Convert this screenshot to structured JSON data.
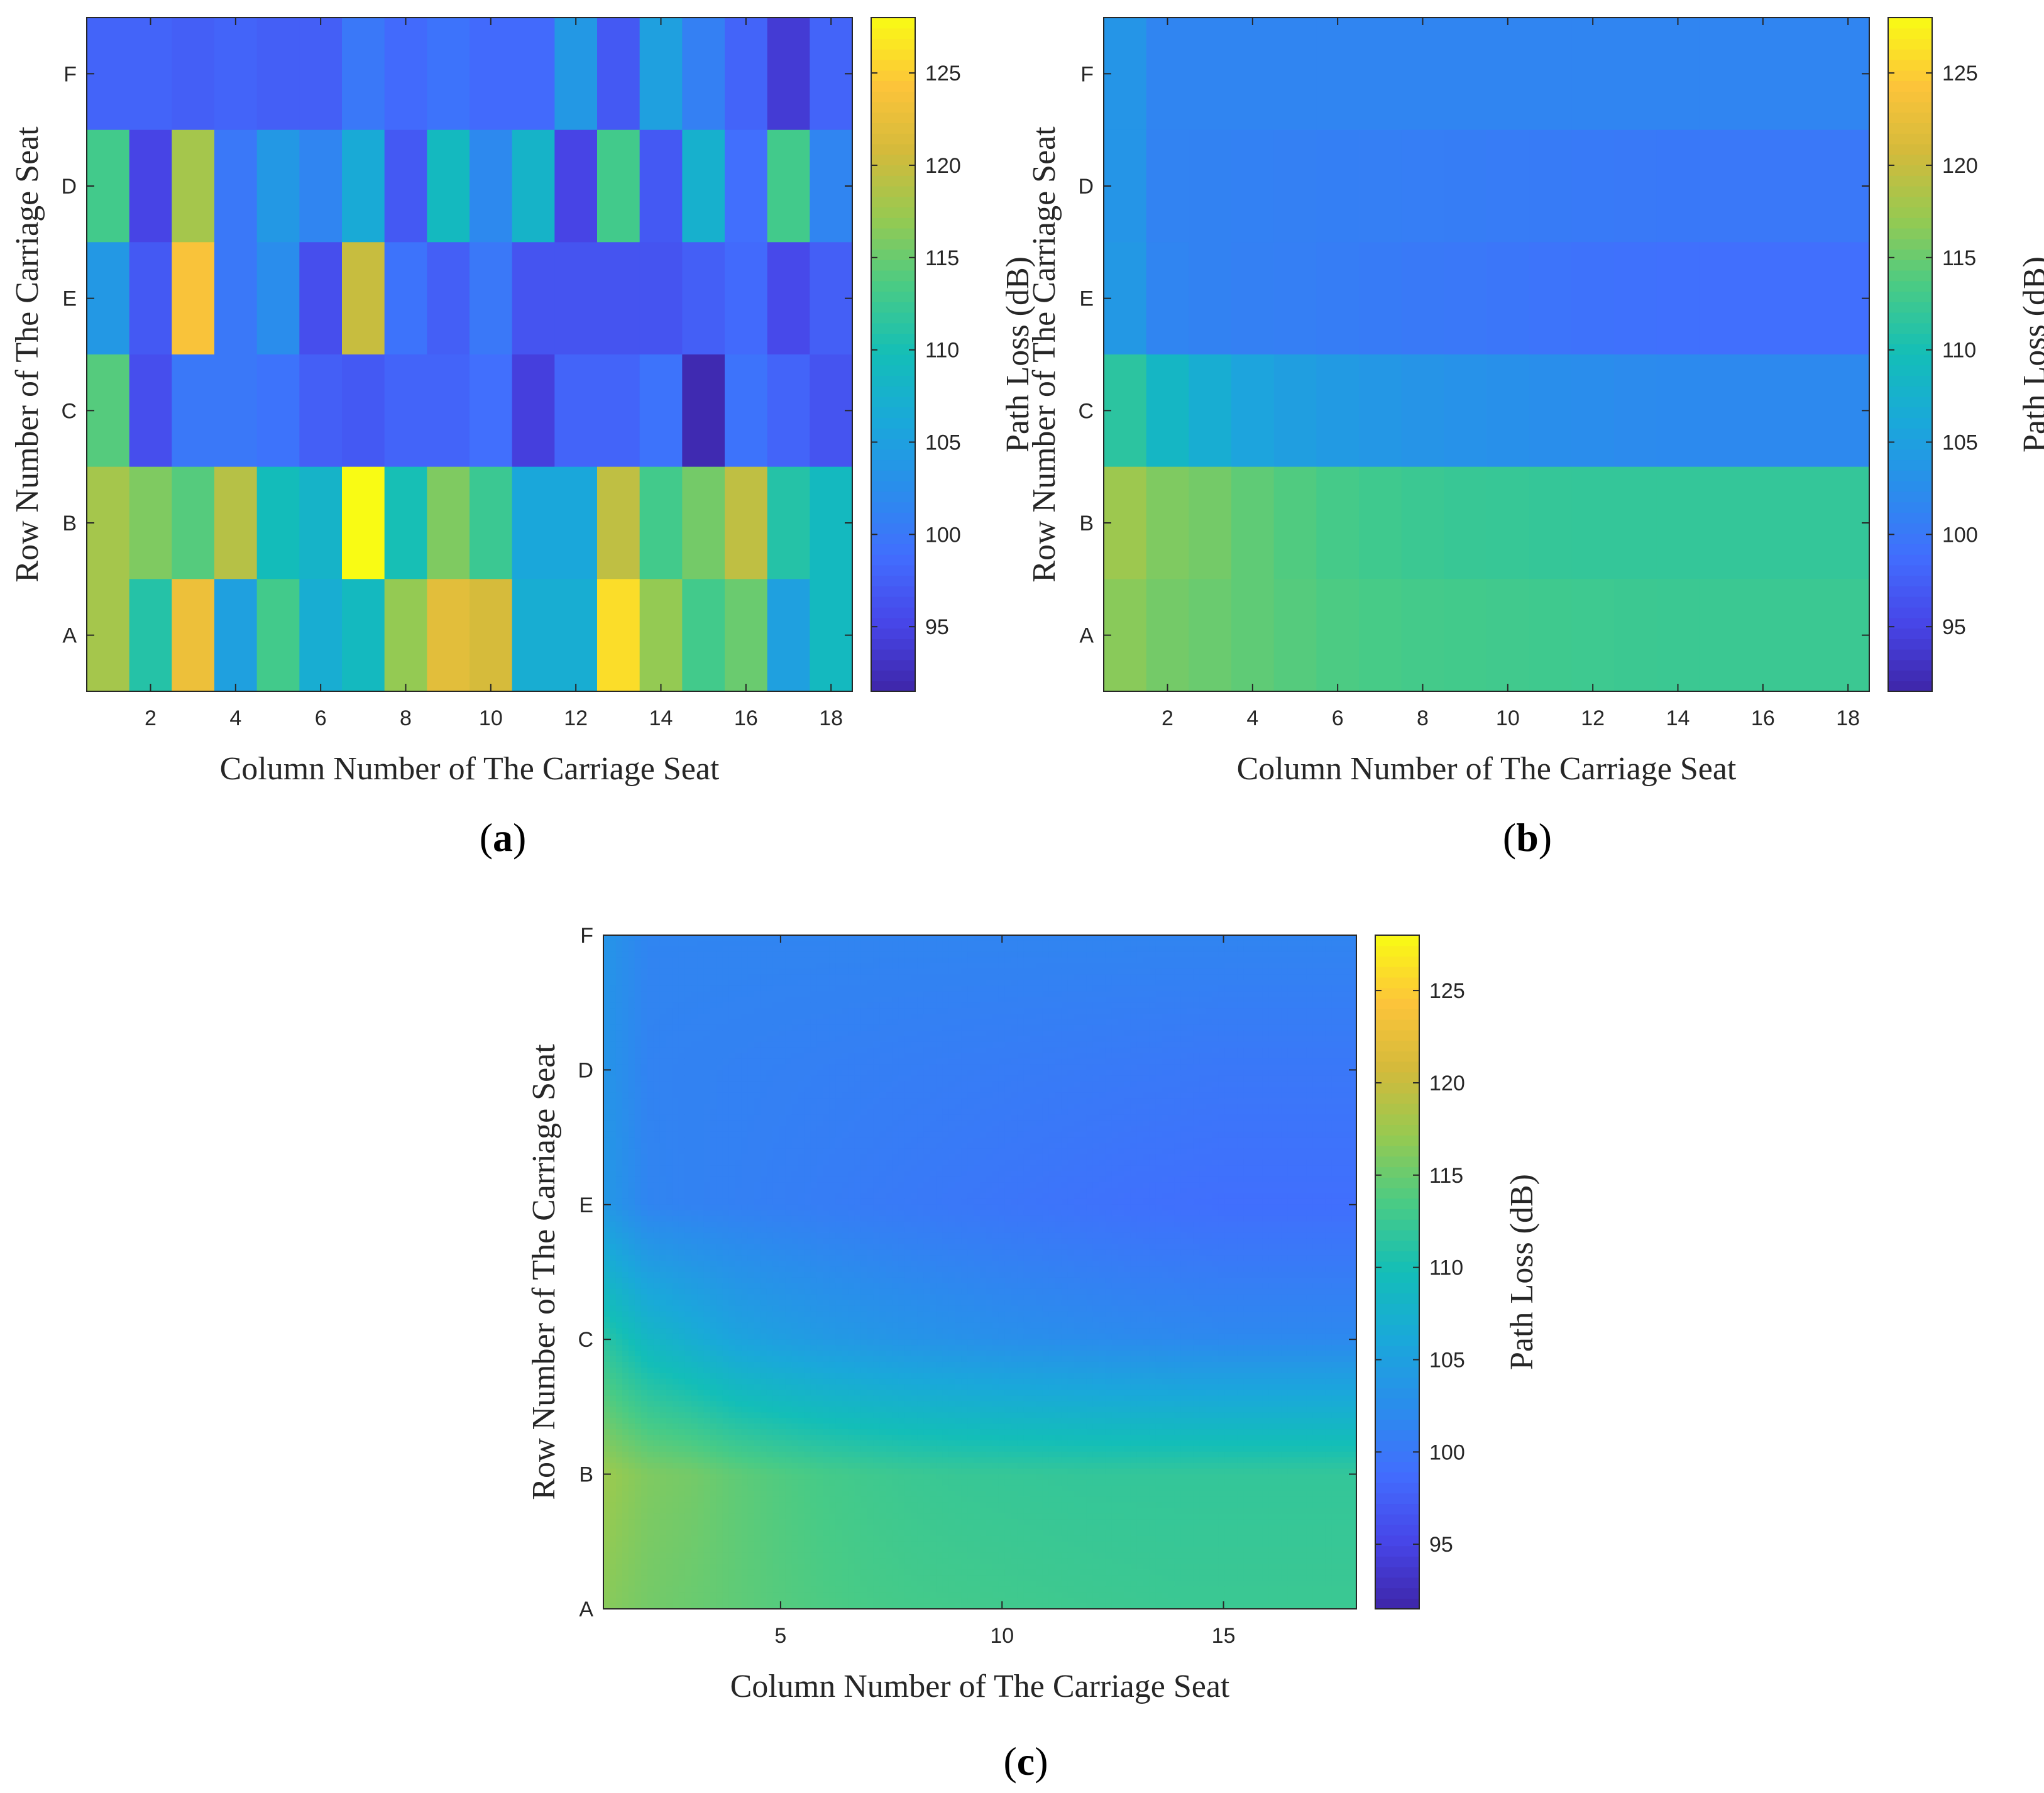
{
  "chart_data": [
    {
      "type": "heatmap",
      "panel": "a",
      "caption": {
        "open": "(",
        "letter": "a",
        "close": ")"
      },
      "xlabel": "Column Number of The Carriage Seat",
      "ylabel": "Row Number of The Carriage Seat",
      "colorbar_label": "Path Loss (dB)",
      "colorbar_ticks": [
        "95",
        "100",
        "105",
        "110",
        "115",
        "120",
        "125"
      ],
      "clim": [
        91.5,
        128
      ],
      "x_ticks": [
        "2",
        "4",
        "6",
        "8",
        "10",
        "12",
        "14",
        "16",
        "18"
      ],
      "x_tick_values": [
        2,
        4,
        6,
        8,
        10,
        12,
        14,
        16,
        18
      ],
      "xlim": [
        0.5,
        18.5
      ],
      "y_ticks": [
        "F",
        "D",
        "E",
        "C",
        "B",
        "A"
      ],
      "columns": 18,
      "rows": [
        "F",
        "D",
        "E",
        "C",
        "B",
        "A"
      ],
      "values": [
        [
          98,
          98,
          97.5,
          98,
          97.5,
          97.5,
          100,
          98.5,
          99.5,
          98.5,
          98.5,
          104,
          97,
          105,
          101,
          98,
          94,
          98
        ],
        [
          113,
          95,
          118,
          100,
          104,
          101.5,
          106.5,
          97,
          109,
          102,
          108,
          95,
          113,
          97,
          107.5,
          99,
          113,
          101.5
        ],
        [
          104,
          97,
          124,
          100,
          102.5,
          96,
          120,
          99.5,
          97.5,
          100,
          96.5,
          96.5,
          96.5,
          96.5,
          97.5,
          98.5,
          95.5,
          97.5
        ],
        [
          114,
          96,
          100,
          100,
          99.5,
          97.5,
          97,
          98,
          98,
          99,
          94.5,
          98,
          98,
          99.5,
          92,
          99.5,
          98,
          96.5
        ],
        [
          118,
          116,
          114,
          119,
          109.5,
          108,
          128,
          110,
          116,
          112.5,
          106,
          106,
          119.5,
          113,
          115.5,
          119.5,
          111,
          109
        ],
        [
          118,
          111,
          123,
          105,
          113,
          107,
          109,
          117,
          122,
          121,
          107,
          107,
          126,
          117,
          113,
          115,
          105,
          109
        ]
      ]
    },
    {
      "type": "heatmap",
      "panel": "b",
      "caption": {
        "open": "(",
        "letter": "b",
        "close": ")"
      },
      "xlabel": "Column Number of The Carriage Seat",
      "ylabel": "Row Number of The Carriage Seat",
      "colorbar_label": "Path Loss (dB)",
      "colorbar_ticks": [
        "95",
        "100",
        "105",
        "110",
        "115",
        "120",
        "125"
      ],
      "clim": [
        91.5,
        128
      ],
      "x_ticks": [
        "2",
        "4",
        "6",
        "8",
        "10",
        "12",
        "14",
        "16",
        "18"
      ],
      "x_tick_values": [
        2,
        4,
        6,
        8,
        10,
        12,
        14,
        16,
        18
      ],
      "xlim": [
        0.5,
        18.5
      ],
      "y_ticks": [
        "F",
        "D",
        "E",
        "C",
        "B",
        "A"
      ],
      "columns": 18,
      "rows": [
        "F",
        "D",
        "E",
        "C",
        "B",
        "A"
      ],
      "values": [
        [
          103.5,
          101.5,
          101.5,
          101.5,
          101.5,
          101.5,
          101.5,
          101.5,
          101.5,
          101.5,
          101.5,
          101.5,
          101.5,
          101.5,
          101.5,
          101.5,
          101.5,
          101.5
        ],
        [
          103.5,
          101.3,
          101.2,
          101.1,
          101.0,
          100.9,
          100.8,
          100.7,
          100.6,
          100.5,
          100.4,
          100.3,
          100.2,
          100.1,
          100.0,
          100.0,
          100.0,
          100.0
        ],
        [
          104,
          101.5,
          101.2,
          101.0,
          100.8,
          100.6,
          100.4,
          100.2,
          100.0,
          99.8,
          99.6,
          99.4,
          99.2,
          99.1,
          99.0,
          99.0,
          99.0,
          99.0
        ],
        [
          111.5,
          108.5,
          107,
          105.5,
          104.8,
          104.2,
          103.8,
          103.4,
          103.1,
          102.8,
          102.6,
          102.4,
          102.2,
          102.1,
          102,
          102,
          102,
          102
        ],
        [
          117.5,
          116,
          115.5,
          114.5,
          113.8,
          113.2,
          112.8,
          112.5,
          112.3,
          112.2,
          112.1,
          112,
          112,
          112,
          112,
          112,
          112,
          112
        ],
        [
          116.5,
          115.5,
          115,
          114.5,
          114,
          113.6,
          113.3,
          113.1,
          113,
          112.9,
          112.8,
          112.7,
          112.6,
          112.5,
          112.5,
          112.5,
          112.5,
          112.5
        ]
      ]
    },
    {
      "type": "heatmap",
      "panel": "c",
      "interpolated": true,
      "caption": {
        "open": "(",
        "letter": "c",
        "close": ")"
      },
      "xlabel": "Column Number of The Carriage Seat",
      "ylabel": "Row Number of The Carriage Seat",
      "colorbar_label": "Path Loss (dB)",
      "colorbar_ticks": [
        "95",
        "100",
        "105",
        "110",
        "115",
        "120",
        "125"
      ],
      "clim": [
        91.5,
        128
      ],
      "x_ticks": [
        "5",
        "10",
        "15"
      ],
      "x_tick_values": [
        5,
        10,
        15
      ],
      "xlim": [
        1,
        18
      ],
      "y_ticks": [
        "F",
        "D",
        "E",
        "C",
        "B",
        "A"
      ],
      "rows": [
        "F",
        "D",
        "E",
        "C",
        "B",
        "A"
      ],
      "columns": 18,
      "values": [
        [
          103.5,
          101.5,
          101.5,
          101.5,
          101.5,
          101.5,
          101.5,
          101.5,
          101.5,
          101.5,
          101.5,
          101.5,
          101.5,
          101.5,
          101.5,
          101.5,
          101.5,
          101.5
        ],
        [
          103.5,
          101.3,
          101.2,
          101.1,
          101.0,
          100.9,
          100.8,
          100.7,
          100.6,
          100.5,
          100.4,
          100.3,
          100.2,
          100.1,
          100.0,
          100.0,
          100.0,
          100.0
        ],
        [
          104,
          101.5,
          101.2,
          101.0,
          100.8,
          100.6,
          100.4,
          100.2,
          100.0,
          99.8,
          99.6,
          99.4,
          99.2,
          99.1,
          99.0,
          99.0,
          99.0,
          99.0
        ],
        [
          111.5,
          108.5,
          107,
          105.5,
          104.8,
          104.2,
          103.8,
          103.4,
          103.1,
          102.8,
          102.6,
          102.4,
          102.2,
          102.1,
          102,
          102,
          102,
          102
        ],
        [
          117.5,
          116,
          115.5,
          114.5,
          113.8,
          113.2,
          112.8,
          112.5,
          112.3,
          112.2,
          112.1,
          112,
          112,
          112,
          112,
          112,
          112,
          112
        ],
        [
          116.5,
          115.5,
          115,
          114.5,
          114,
          113.6,
          113.3,
          113.1,
          113,
          112.9,
          112.8,
          112.7,
          112.6,
          112.5,
          112.5,
          112.5,
          112.5,
          112.5
        ]
      ]
    }
  ],
  "colormap": "parula"
}
